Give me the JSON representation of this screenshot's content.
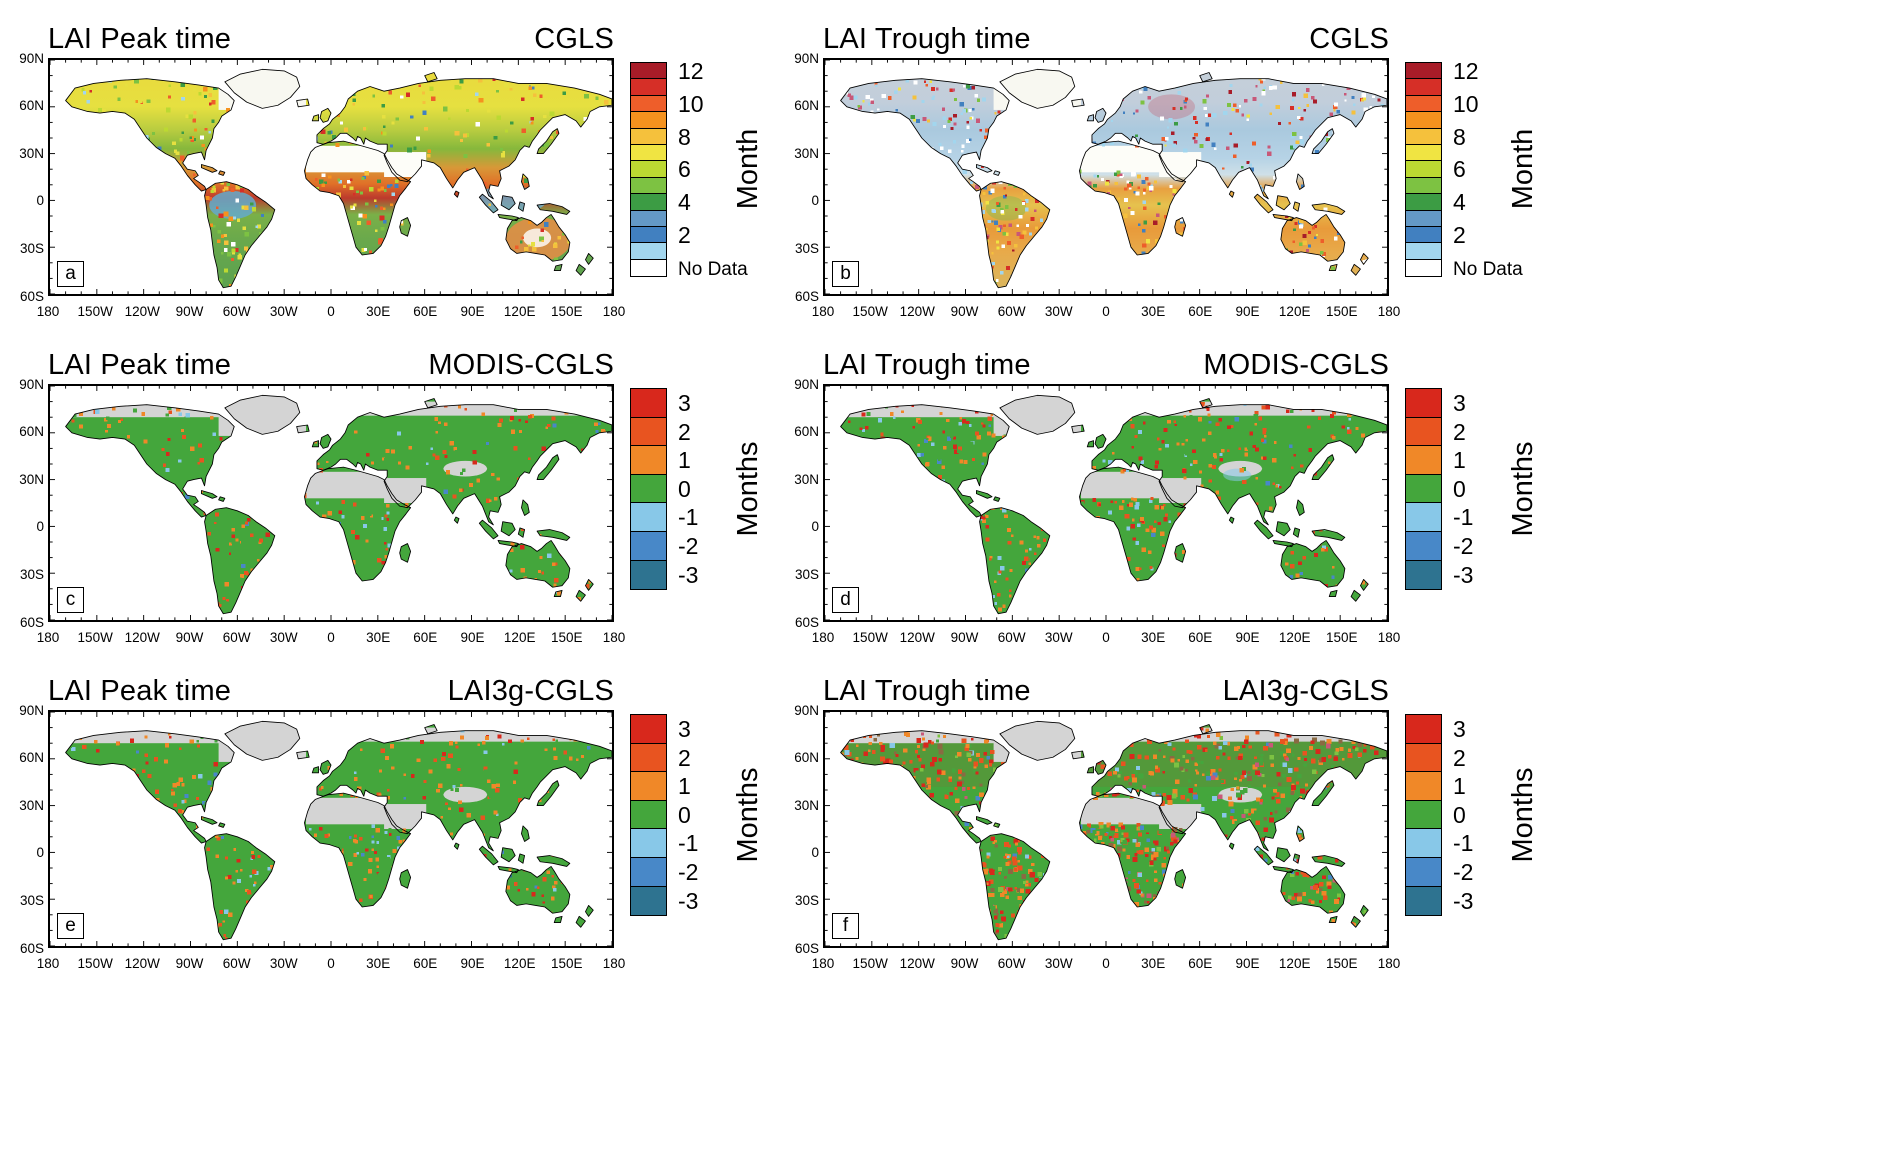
{
  "figure": {
    "panels": [
      {
        "letter": "a",
        "title_left": "LAI Peak time",
        "title_right": "CGLS",
        "colorbar": "month"
      },
      {
        "letter": "b",
        "title_left": "LAI Trough time",
        "title_right": "CGLS",
        "colorbar": "month"
      },
      {
        "letter": "c",
        "title_left": "LAI Peak time",
        "title_right": "MODIS-CGLS",
        "colorbar": "months_diff"
      },
      {
        "letter": "d",
        "title_left": "LAI Trough time",
        "title_right": "MODIS-CGLS",
        "colorbar": "months_diff"
      },
      {
        "letter": "e",
        "title_left": "LAI Peak time",
        "title_right": "LAI3g-CGLS",
        "colorbar": "months_diff"
      },
      {
        "letter": "f",
        "title_left": "LAI Trough time",
        "title_right": "LAI3g-CGLS",
        "colorbar": "months_diff"
      }
    ],
    "axes": {
      "lat_ticks": [
        "90N",
        "60N",
        "30N",
        "0",
        "30S",
        "60S"
      ],
      "lon_ticks": [
        "180",
        "150W",
        "120W",
        "90W",
        "60W",
        "30W",
        "0",
        "30E",
        "60E",
        "90E",
        "120E",
        "150E",
        "180"
      ]
    },
    "colorbars": {
      "month": {
        "label": "Month",
        "tick_labels": [
          "12",
          "10",
          "8",
          "6",
          "4",
          "2"
        ],
        "no_data_label": "No Data",
        "colors": [
          "#a81c28",
          "#d62f27",
          "#ee5e2a",
          "#f5921e",
          "#f5c13c",
          "#f0e442",
          "#bcd932",
          "#7dc242",
          "#3c9c44",
          "#6499c6",
          "#4180c0",
          "#a2d6ee",
          "#ffffff"
        ]
      },
      "months_diff": {
        "label": "Months",
        "tick_labels": [
          "3",
          "2",
          "1",
          "0",
          "-1",
          "-2",
          "-3"
        ],
        "colors": [
          "#d8281c",
          "#e85420",
          "#f08828",
          "#44a63c",
          "#88c8e8",
          "#4888c8",
          "#2e7390"
        ]
      }
    }
  },
  "chart_data": [
    {
      "type": "heatmap",
      "panel": "a",
      "title": "LAI Peak time",
      "dataset": "CGLS",
      "units": "Month",
      "value_range": [
        1,
        12
      ],
      "x_ticks": [
        "180",
        "150W",
        "120W",
        "90W",
        "60W",
        "30W",
        "0",
        "30E",
        "60E",
        "90E",
        "120E",
        "150E",
        "180"
      ],
      "y_ticks": [
        "90N",
        "60N",
        "30N",
        "0",
        "30S",
        "60S"
      ],
      "no_data_regions": "Sahara, Arabian Peninsula, Greenland interior, central Australia",
      "regional_values_estimated": {
        "boreal_north_america_eurasia": "7-8",
        "temperate_midlatitudes": "5-6",
        "mexico_sahel_india": "8-10",
        "equatorial_africa": "11-12",
        "amazon_maritime_southeast_asia": "2-4",
        "southern_africa_southern_south_america": "2-4",
        "australia": "9-12 with 2-3 along east coast"
      }
    },
    {
      "type": "heatmap",
      "panel": "b",
      "title": "LAI Trough time",
      "dataset": "CGLS",
      "units": "Month",
      "value_range": [
        1,
        12
      ],
      "no_data_regions": "Sahara, Arabian Peninsula, Greenland interior",
      "regional_values_estimated": {
        "boreal_north_america_eurasia": "1-3 with scattered 10-12",
        "central_asia_tibet": "1-2",
        "eastern_europe_west_russia": "11-12 patches",
        "sahel_horn_of_africa": "8-10",
        "amazon_congo": "6-8",
        "southern_africa_brazil": "8-10",
        "australia": "9-11 with 1-2 along south coast"
      }
    },
    {
      "type": "heatmap",
      "panel": "c",
      "title": "LAI Peak time difference",
      "dataset": "MODIS-CGLS",
      "units": "Months",
      "value_range": [
        -3,
        3
      ],
      "regional_values_estimated": {
        "most_vegetated_land": "0",
        "scattered_cells_global": "+1 to +2, few +3",
        "sparse_negative_cells": "-1 to -2",
        "no_data": "Sahara, Arabia, Greenland, high Arctic, Taklamakan"
      }
    },
    {
      "type": "heatmap",
      "panel": "d",
      "title": "LAI Trough time difference",
      "dataset": "MODIS-CGLS",
      "units": "Months",
      "value_range": [
        -3,
        3
      ],
      "regional_values_estimated": {
        "most_vegetated_land": "0",
        "high_northern_latitudes": "+1 to +3 widespread",
        "tibet_himalaya": "-1 patches",
        "scattered_cells_global": "+1 to +2",
        "no_data": "Sahara, Arabia, Greenland, high Arctic"
      }
    },
    {
      "type": "heatmap",
      "panel": "e",
      "title": "LAI Peak time difference",
      "dataset": "LAI3g-CGLS",
      "units": "Months",
      "value_range": [
        -3,
        3
      ],
      "regional_values_estimated": {
        "most_vegetated_land": "0",
        "scattered_cells": "+1 to +2, denser than panel c over Eurasia",
        "sparse_negative_cells": "-1 to -2",
        "no_data": "Sahara, Arabia, Greenland, high Arctic"
      }
    },
    {
      "type": "heatmap",
      "panel": "f",
      "title": "LAI Trough time difference",
      "dataset": "LAI3g-CGLS",
      "units": "Months",
      "value_range": [
        -3,
        3
      ],
      "regional_values_estimated": {
        "most_land": "noisy mix of 0 and +1 to +3",
        "high_northern_latitudes": "predominantly +1 to +3",
        "scattered_negative": "-1 to -3",
        "character": "largest disagreement of the difference panels",
        "no_data": "Sahara, Arabia, Greenland"
      }
    }
  ]
}
